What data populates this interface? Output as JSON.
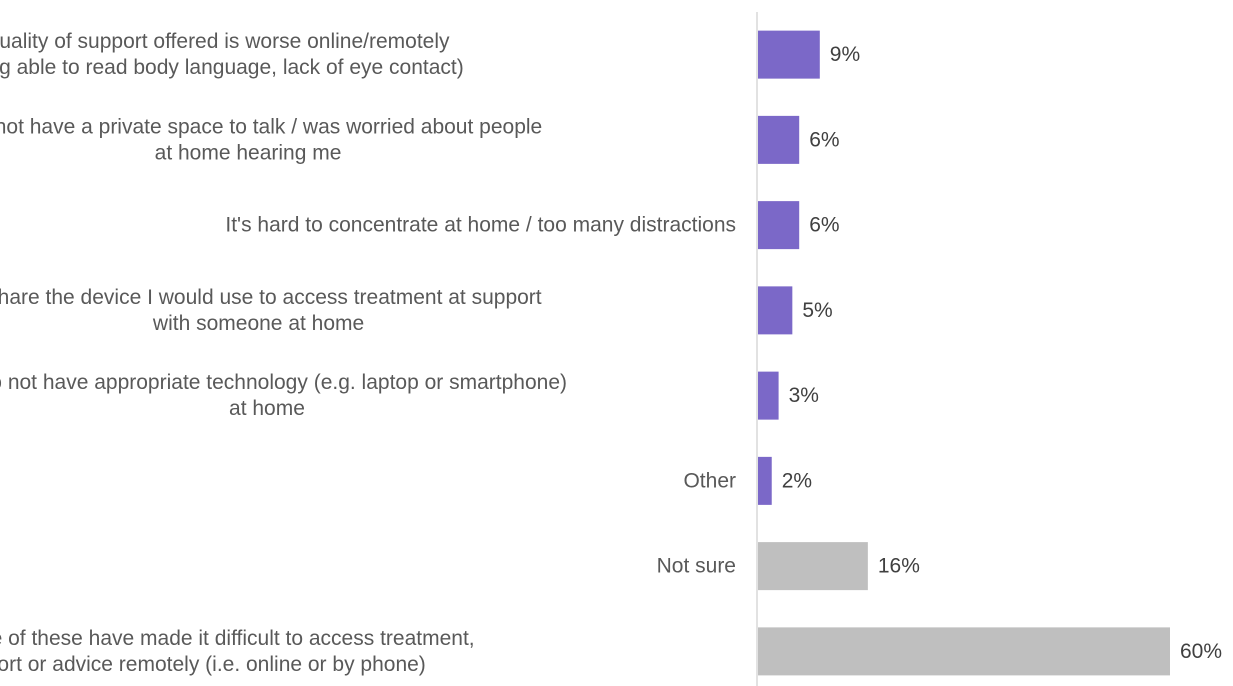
{
  "chart_data": {
    "type": "bar",
    "orientation": "horizontal",
    "categories": [
      [
        "I think the quality of support offered is worse online/remotely",
        "(e.g. not being able to read body language, lack of eye contact)"
      ],
      [
        "I do not have a private space to talk / was worried about people",
        "at home hearing me"
      ],
      [
        "It's hard to concentrate at home / too many distractions"
      ],
      [
        "I share the device I would use to access treatment at support",
        "with someone at home"
      ],
      [
        "I do not have appropriate technology (e.g. laptop or smartphone)",
        "at home"
      ],
      [
        "Other"
      ],
      [
        "Not sure"
      ],
      [
        "N/A - none of these have made it difficult to access treatment,",
        "support or advice remotely (i.e. online or by phone)"
      ]
    ],
    "values": [
      9,
      6,
      6,
      5,
      3,
      2,
      16,
      60
    ],
    "value_labels": [
      "9%",
      "6%",
      "6%",
      "5%",
      "3%",
      "2%",
      "16%",
      "60%"
    ],
    "bar_colors": [
      "#7B68C8",
      "#7B68C8",
      "#7B68C8",
      "#7B68C8",
      "#7B68C8",
      "#7B68C8",
      "#BFBFBF",
      "#BFBFBF"
    ],
    "xlim": [
      0,
      60
    ],
    "grid": false,
    "title": "",
    "xlabel": "",
    "ylabel": ""
  }
}
